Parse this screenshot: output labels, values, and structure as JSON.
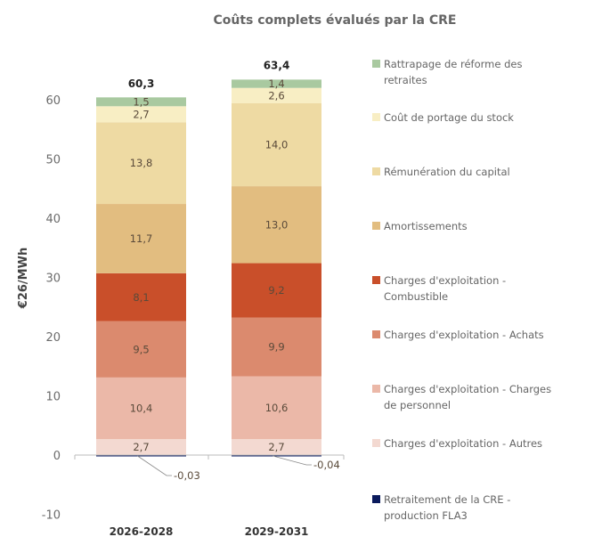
{
  "chart_data": {
    "type": "bar",
    "stacked": true,
    "title": "Coûts complets évalués par la CRE",
    "xlabel": "",
    "ylabel": "€26/MWh",
    "ylim": [
      -10,
      60
    ],
    "yticks": [
      -10,
      0,
      10,
      20,
      30,
      40,
      50,
      60
    ],
    "grid": false,
    "legend_position": "right",
    "categories": [
      "2026-2028",
      "2029-2031"
    ],
    "totals": [
      60.3,
      63.4
    ],
    "total_labels": [
      "60,3",
      "63,4"
    ],
    "series": [
      {
        "name": "Retraitement de la CRE - production FLA3",
        "legend_lines": [
          "Retraitement de la CRE -",
          "production FLA3"
        ],
        "color": "#0a1a5c",
        "values": [
          -0.03,
          -0.04
        ],
        "labels": [
          "-0,03",
          "-0,04"
        ]
      },
      {
        "name": "Charges d'exploitation - Autres",
        "legend_lines": [
          "Charges d'exploitation - Autres"
        ],
        "color": "#f3d9d1",
        "values": [
          2.7,
          2.7
        ],
        "labels": [
          "2,7",
          "2,7"
        ]
      },
      {
        "name": "Charges d'exploitation - Charges de personnel",
        "legend_lines": [
          "Charges d'exploitation - Charges",
          "de personnel"
        ],
        "color": "#ebb8a8",
        "values": [
          10.4,
          10.6
        ],
        "labels": [
          "10,4",
          "10,6"
        ]
      },
      {
        "name": "Charges d'exploitation - Achats",
        "legend_lines": [
          "Charges d'exploitation - Achats"
        ],
        "color": "#db8a6e",
        "values": [
          9.5,
          9.9
        ],
        "labels": [
          "9,5",
          "9,9"
        ]
      },
      {
        "name": "Charges d'exploitation - Combustible",
        "legend_lines": [
          "Charges d'exploitation -",
          "Combustible"
        ],
        "color": "#c94f2a",
        "values": [
          8.1,
          9.2
        ],
        "labels": [
          "8,1",
          "9,2"
        ],
        "label_color": "#fbe3d8"
      },
      {
        "name": "Amortissements",
        "legend_lines": [
          "Amortissements"
        ],
        "color": "#e2bd80",
        "values": [
          11.7,
          13.0
        ],
        "labels": [
          "11,7",
          "13,0"
        ]
      },
      {
        "name": "Rémunération du capital",
        "legend_lines": [
          "Rémunération du capital"
        ],
        "color": "#eedaa3",
        "values": [
          13.8,
          14.0
        ],
        "labels": [
          "13,8",
          "14,0"
        ]
      },
      {
        "name": "Coût de portage du stock",
        "legend_lines": [
          "Coût de portage du stock"
        ],
        "color": "#f8eec4",
        "values": [
          2.7,
          2.6
        ],
        "labels": [
          "2,7",
          "2,6"
        ]
      },
      {
        "name": "Rattrapage de réforme des retraites",
        "legend_lines": [
          "Rattrapage de réforme des",
          "retraites"
        ],
        "color": "#a9c9a0",
        "values": [
          1.5,
          1.4
        ],
        "labels": [
          "1,5",
          "1,4"
        ]
      }
    ]
  }
}
